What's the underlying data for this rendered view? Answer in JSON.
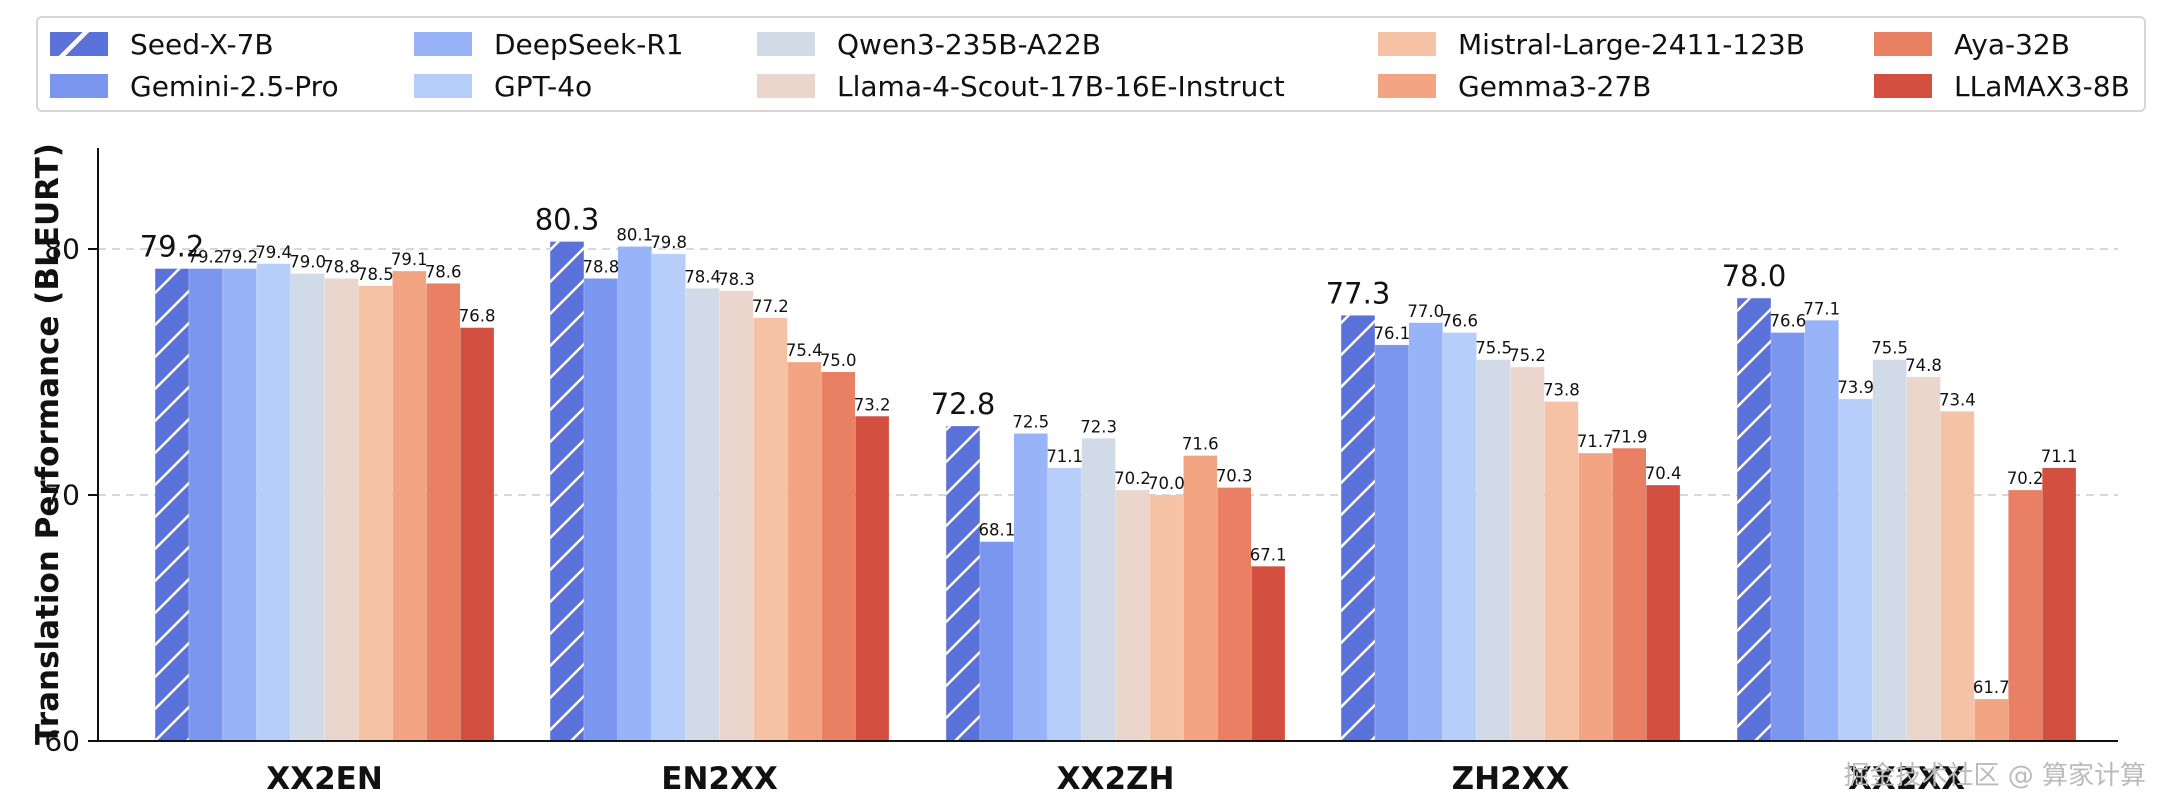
{
  "chart_data": {
    "type": "bar",
    "title": "",
    "xlabel": "",
    "ylabel": "Translation Performance (BLEURT)",
    "ylim": [
      60,
      84
    ],
    "yticks": [
      60,
      70,
      80
    ],
    "grid": "dashed horizontal lines at 70 and 80",
    "legend_placement": "top",
    "categories": [
      "XX2EN",
      "EN2XX",
      "XX2ZH",
      "ZH2XX",
      "XX2XX"
    ],
    "series": [
      {
        "name": "Seed-X-7B",
        "color": "#5b72da",
        "hatch": true,
        "values": [
          79.2,
          80.3,
          72.8,
          77.3,
          78.0
        ]
      },
      {
        "name": "Gemini-2.5-Pro",
        "color": "#7a96ef",
        "values": [
          79.2,
          78.8,
          68.1,
          76.1,
          76.6
        ]
      },
      {
        "name": "DeepSeek-R1",
        "color": "#98b3f8",
        "values": [
          79.2,
          80.1,
          72.5,
          77.0,
          77.1
        ]
      },
      {
        "name": "GPT-4o",
        "color": "#b7cefb",
        "values": [
          79.4,
          79.8,
          71.1,
          76.6,
          73.9
        ]
      },
      {
        "name": "Qwen3-235B-A22B",
        "color": "#d1dbe8",
        "values": [
          79.0,
          78.4,
          72.3,
          75.5,
          75.5
        ]
      },
      {
        "name": "Llama-4-Scout-17B-16E-Instruct",
        "color": "#ead6cc",
        "values": [
          78.8,
          78.3,
          70.2,
          75.2,
          74.8
        ]
      },
      {
        "name": "Mistral-Large-2411-123B",
        "color": "#f6c2a6",
        "values": [
          78.5,
          77.2,
          70.0,
          73.8,
          73.4
        ]
      },
      {
        "name": "Gemma3-27B",
        "color": "#f3a483",
        "values": [
          79.1,
          75.4,
          71.6,
          71.7,
          61.7
        ]
      },
      {
        "name": "Aya-32B",
        "color": "#e97f63",
        "values": [
          78.6,
          75.0,
          70.3,
          71.9,
          70.2
        ]
      },
      {
        "name": "LLaMAX3-8B",
        "color": "#d34f40",
        "values": [
          76.8,
          73.2,
          67.1,
          70.4,
          71.1
        ]
      }
    ]
  },
  "watermark": "掘金技术社区 @ 算家计算"
}
